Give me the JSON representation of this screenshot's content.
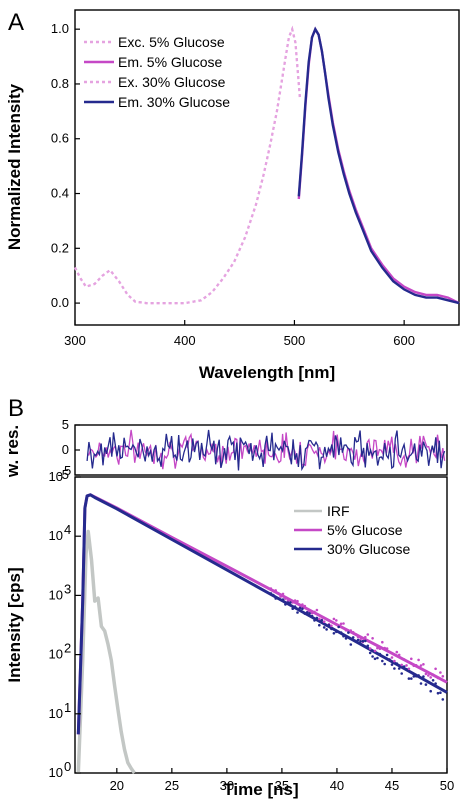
{
  "panels": {
    "a_label": "A",
    "b_label": "B"
  },
  "colors": {
    "excitation": "#e5a3e0",
    "em5": "#c548c6",
    "em30": "#252a8e",
    "irf": "#c3c7c5"
  },
  "chart_data": [
    {
      "type": "line",
      "xlabel": "Wavelength [nm]",
      "ylabel": "Normalized Intensity",
      "xlim": [
        300,
        650
      ],
      "ylim": [
        -0.08,
        1.07
      ],
      "xticks": [
        "300",
        "400",
        "500",
        "600"
      ],
      "yticks": [
        "0.0",
        "0.2",
        "0.4",
        "0.6",
        "0.8",
        "1.0"
      ],
      "legend_position": "top-left",
      "series": [
        {
          "name": "Exc. 5% Glucose",
          "style": "dotted",
          "x": [
            300,
            305,
            310,
            318,
            325,
            332,
            340,
            348,
            355,
            365,
            380,
            400,
            415,
            425,
            435,
            445,
            455,
            465,
            472,
            478,
            484,
            488,
            492,
            495,
            498,
            501,
            503,
            505
          ],
          "y": [
            0.13,
            0.09,
            0.06,
            0.07,
            0.1,
            0.12,
            0.08,
            0.03,
            0.005,
            0.0,
            0.0,
            0.0,
            0.01,
            0.04,
            0.09,
            0.15,
            0.24,
            0.36,
            0.47,
            0.58,
            0.7,
            0.8,
            0.9,
            0.97,
            1.0,
            0.95,
            0.85,
            0.75
          ]
        },
        {
          "name": "Em. 5% Glucose",
          "style": "solid",
          "x": [
            504,
            507,
            510,
            513,
            516,
            519,
            522,
            525,
            528,
            531,
            535,
            540,
            545,
            550,
            556,
            562,
            570,
            580,
            590,
            600,
            610,
            620,
            630,
            640,
            650
          ],
          "y": [
            0.38,
            0.54,
            0.72,
            0.87,
            0.97,
            1.0,
            0.98,
            0.92,
            0.84,
            0.76,
            0.66,
            0.56,
            0.48,
            0.41,
            0.34,
            0.28,
            0.2,
            0.14,
            0.09,
            0.06,
            0.04,
            0.03,
            0.03,
            0.02,
            0.0
          ]
        },
        {
          "name": "Ex. 30% Glucose",
          "style": "dotted",
          "x": [
            300,
            305,
            310,
            318,
            325,
            332,
            340,
            348,
            355,
            365,
            380,
            400,
            415,
            425,
            435,
            445,
            455,
            465,
            472,
            478,
            484,
            488,
            492,
            495,
            498,
            501,
            503,
            505
          ],
          "y": [
            0.13,
            0.09,
            0.06,
            0.07,
            0.1,
            0.12,
            0.08,
            0.03,
            0.005,
            0.0,
            0.0,
            0.0,
            0.01,
            0.04,
            0.09,
            0.15,
            0.24,
            0.36,
            0.47,
            0.58,
            0.7,
            0.8,
            0.9,
            0.97,
            1.0,
            0.95,
            0.85,
            0.75
          ]
        },
        {
          "name": "Em. 30% Glucose",
          "style": "solid",
          "x": [
            504,
            507,
            510,
            513,
            516,
            519,
            522,
            525,
            528,
            531,
            535,
            540,
            545,
            550,
            556,
            562,
            570,
            580,
            590,
            600,
            610,
            620,
            630,
            640,
            650
          ],
          "y": [
            0.39,
            0.55,
            0.73,
            0.88,
            0.97,
            1.0,
            0.98,
            0.92,
            0.84,
            0.75,
            0.65,
            0.55,
            0.47,
            0.4,
            0.33,
            0.27,
            0.19,
            0.13,
            0.08,
            0.05,
            0.03,
            0.02,
            0.02,
            0.01,
            0.0
          ]
        }
      ]
    },
    {
      "type": "line",
      "xlabel": "",
      "ylabel": "w. res.",
      "xlim": [
        16.2,
        50
      ],
      "ylim": [
        -5,
        5
      ],
      "yticks": [
        "-5",
        "0",
        "5"
      ],
      "series": [
        {
          "name": "5% Glucose",
          "noise_amplitude": 1.6
        },
        {
          "name": "30% Glucose",
          "noise_amplitude": 1.7
        }
      ]
    },
    {
      "type": "line",
      "xlabel": "Time [ns]",
      "ylabel": "Intensity [cps]",
      "yscale": "log",
      "xlim": [
        16.2,
        50
      ],
      "ylim": [
        1,
        100000
      ],
      "xticks": [
        "20",
        "25",
        "30",
        "35",
        "40",
        "45",
        "50"
      ],
      "yticks": [
        "10^0",
        "10^1",
        "10^2",
        "10^3",
        "10^4",
        "10^5"
      ],
      "ytick_base": "10",
      "ytick_exponents": [
        "0",
        "1",
        "2",
        "3",
        "4",
        "5"
      ],
      "legend_position": "top-right",
      "series": [
        {
          "name": "IRF",
          "x": [
            16.5,
            16.9,
            17.2,
            17.4,
            17.7,
            18.0,
            18.3,
            18.6,
            18.9,
            19.2,
            19.5,
            19.8,
            20.1,
            20.4,
            20.7,
            21.0,
            21.3,
            21.6
          ],
          "y": [
            1,
            80,
            5000,
            12000,
            4000,
            800,
            900,
            300,
            250,
            150,
            80,
            30,
            12,
            5,
            2.5,
            1.5,
            1.2,
            1
          ]
        },
        {
          "name": "5% Glucose",
          "x": [
            16.5,
            16.9,
            17.1,
            17.3,
            17.6,
            18.0,
            20,
            25,
            30,
            35,
            40,
            45,
            50
          ],
          "y": [
            4.5,
            800,
            30000,
            48000,
            50000,
            46000,
            30000,
            9500,
            3100,
            1000,
            320,
            105,
            34
          ]
        },
        {
          "name": "30% Glucose",
          "x": [
            16.5,
            16.9,
            17.1,
            17.3,
            17.6,
            18.0,
            20,
            25,
            30,
            35,
            40,
            45,
            50
          ],
          "y": [
            4.5,
            800,
            30000,
            48000,
            50000,
            45000,
            29000,
            8800,
            2700,
            820,
            250,
            76,
            23
          ]
        }
      ]
    }
  ]
}
